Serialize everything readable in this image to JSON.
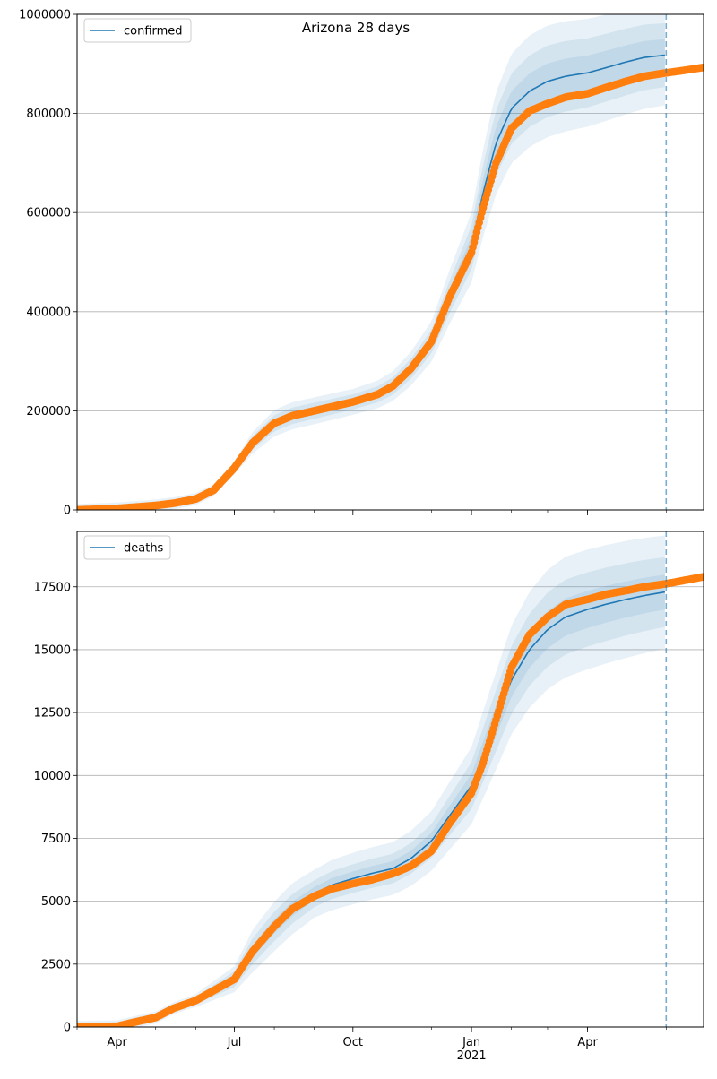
{
  "figure": {
    "title": "Arizona 28 days"
  },
  "chart_data": [
    {
      "type": "line",
      "panel": "top",
      "title": "Arizona 28 days",
      "legend": {
        "label": "confirmed",
        "placement": "top-left"
      },
      "grid": "y",
      "ylim": [
        0,
        1000000
      ],
      "yticks": [
        0,
        200000,
        400000,
        600000,
        800000,
        1000000
      ],
      "ytick_labels": [
        "0",
        "200000",
        "400000",
        "600000",
        "800000",
        "1000000"
      ],
      "xlim": [
        "2020-03-01",
        "2021-06-30"
      ],
      "forecast_start": "2021-06-01",
      "colors": {
        "model": "#1f77b4",
        "observed": "#ff7f0e",
        "band": "#1f77b4",
        "forecast_line": "#1f77b4"
      },
      "observed": [
        [
          "2020-03-01",
          0
        ],
        [
          "2020-04-01",
          3000
        ],
        [
          "2020-05-01",
          9000
        ],
        [
          "2020-05-15",
          13500
        ],
        [
          "2020-06-01",
          22000
        ],
        [
          "2020-06-15",
          40000
        ],
        [
          "2020-07-01",
          85000
        ],
        [
          "2020-07-15",
          135000
        ],
        [
          "2020-08-01",
          175000
        ],
        [
          "2020-08-15",
          190000
        ],
        [
          "2020-09-01",
          200000
        ],
        [
          "2020-10-01",
          218000
        ],
        [
          "2020-10-20",
          233000
        ],
        [
          "2020-11-01",
          250000
        ],
        [
          "2020-11-15",
          285000
        ],
        [
          "2020-12-01",
          340000
        ],
        [
          "2020-12-15",
          430000
        ],
        [
          "2021-01-01",
          520000
        ],
        [
          "2021-01-10",
          610000
        ],
        [
          "2021-01-20",
          700000
        ],
        [
          "2021-02-01",
          770000
        ],
        [
          "2021-02-15",
          805000
        ],
        [
          "2021-03-01",
          820000
        ],
        [
          "2021-03-15",
          833000
        ],
        [
          "2021-04-01",
          840000
        ],
        [
          "2021-04-15",
          852000
        ],
        [
          "2021-05-01",
          865000
        ],
        [
          "2021-05-15",
          875000
        ],
        [
          "2021-06-01",
          882000
        ],
        [
          "2021-06-15",
          887000
        ],
        [
          "2021-06-30",
          893000
        ]
      ],
      "model": [
        [
          "2020-03-01",
          0
        ],
        [
          "2020-04-01",
          3000
        ],
        [
          "2020-05-01",
          9000
        ],
        [
          "2020-05-15",
          13500
        ],
        [
          "2020-06-01",
          22000
        ],
        [
          "2020-06-15",
          40000
        ],
        [
          "2020-07-01",
          85000
        ],
        [
          "2020-07-15",
          135000
        ],
        [
          "2020-08-01",
          175000
        ],
        [
          "2020-08-15",
          190000
        ],
        [
          "2020-09-01",
          200000
        ],
        [
          "2020-10-01",
          218000
        ],
        [
          "2020-10-20",
          233000
        ],
        [
          "2020-11-01",
          250000
        ],
        [
          "2020-11-15",
          285000
        ],
        [
          "2020-12-01",
          340000
        ],
        [
          "2020-12-15",
          430000
        ],
        [
          "2021-01-01",
          530000
        ],
        [
          "2021-01-10",
          640000
        ],
        [
          "2021-01-20",
          740000
        ],
        [
          "2021-02-01",
          810000
        ],
        [
          "2021-02-15",
          845000
        ],
        [
          "2021-03-01",
          865000
        ],
        [
          "2021-03-15",
          875000
        ],
        [
          "2021-04-01",
          882000
        ],
        [
          "2021-04-15",
          892000
        ],
        [
          "2021-05-01",
          904000
        ],
        [
          "2021-05-15",
          913000
        ],
        [
          "2021-06-01",
          918000
        ]
      ],
      "bands_rel": [
        [
          [
            "2020-03-01",
            0.06
          ],
          [
            "2020-06-01",
            0.15
          ],
          [
            "2020-07-15",
            0.16
          ],
          [
            "2020-10-01",
            0.12
          ],
          [
            "2020-12-01",
            0.12
          ],
          [
            "2021-01-15",
            0.14
          ],
          [
            "2021-06-01",
            0.11
          ]
        ],
        [
          [
            "2020-03-01",
            0.03
          ],
          [
            "2020-06-01",
            0.09
          ],
          [
            "2020-07-15",
            0.1
          ],
          [
            "2020-10-01",
            0.07
          ],
          [
            "2020-12-01",
            0.07
          ],
          [
            "2021-01-15",
            0.09
          ],
          [
            "2021-06-01",
            0.07
          ]
        ],
        [
          [
            "2020-03-01",
            0.015
          ],
          [
            "2020-06-01",
            0.045
          ],
          [
            "2020-07-15",
            0.05
          ],
          [
            "2020-10-01",
            0.035
          ],
          [
            "2020-12-01",
            0.035
          ],
          [
            "2021-01-15",
            0.045
          ],
          [
            "2021-06-01",
            0.035
          ]
        ]
      ]
    },
    {
      "type": "line",
      "panel": "bottom",
      "legend": {
        "label": "deaths",
        "placement": "top-left"
      },
      "grid": "y",
      "ylim": [
        0,
        19700
      ],
      "yticks": [
        0,
        2500,
        5000,
        7500,
        10000,
        12500,
        15000,
        17500
      ],
      "ytick_labels": [
        "0",
        "2500",
        "5000",
        "7500",
        "10000",
        "12500",
        "15000",
        "17500"
      ],
      "xlim": [
        "2020-03-01",
        "2021-06-30"
      ],
      "xticks": [
        {
          "date": "2020-04-01",
          "label": "Apr"
        },
        {
          "date": "2020-07-01",
          "label": "Jul"
        },
        {
          "date": "2020-10-01",
          "label": "Oct"
        },
        {
          "date": "2021-01-01",
          "label": "Jan",
          "sublabel": "2021"
        },
        {
          "date": "2021-04-01",
          "label": "Apr"
        }
      ],
      "forecast_start": "2021-06-01",
      "colors": {
        "model": "#1f77b4",
        "observed": "#ff7f0e",
        "band": "#1f77b4",
        "forecast_line": "#1f77b4"
      },
      "observed": [
        [
          "2020-03-01",
          0
        ],
        [
          "2020-04-01",
          30
        ],
        [
          "2020-04-15",
          200
        ],
        [
          "2020-05-01",
          380
        ],
        [
          "2020-05-15",
          750
        ],
        [
          "2020-06-01",
          1050
        ],
        [
          "2020-06-15",
          1450
        ],
        [
          "2020-07-01",
          1900
        ],
        [
          "2020-07-15",
          3000
        ],
        [
          "2020-08-01",
          4000
        ],
        [
          "2020-08-15",
          4700
        ],
        [
          "2020-09-01",
          5200
        ],
        [
          "2020-09-15",
          5500
        ],
        [
          "2020-10-01",
          5700
        ],
        [
          "2020-10-15",
          5850
        ],
        [
          "2020-11-01",
          6100
        ],
        [
          "2020-11-15",
          6400
        ],
        [
          "2020-12-01",
          7000
        ],
        [
          "2020-12-15",
          8100
        ],
        [
          "2021-01-01",
          9300
        ],
        [
          "2021-01-10",
          10500
        ],
        [
          "2021-01-20",
          12200
        ],
        [
          "2021-02-01",
          14300
        ],
        [
          "2021-02-15",
          15600
        ],
        [
          "2021-03-01",
          16300
        ],
        [
          "2021-03-15",
          16800
        ],
        [
          "2021-04-01",
          17000
        ],
        [
          "2021-04-15",
          17200
        ],
        [
          "2021-05-01",
          17350
        ],
        [
          "2021-05-15",
          17500
        ],
        [
          "2021-06-01",
          17620
        ],
        [
          "2021-06-30",
          17900
        ]
      ],
      "model": [
        [
          "2020-03-01",
          0
        ],
        [
          "2020-04-01",
          30
        ],
        [
          "2020-04-15",
          200
        ],
        [
          "2020-05-01",
          380
        ],
        [
          "2020-05-15",
          750
        ],
        [
          "2020-06-01",
          1050
        ],
        [
          "2020-06-15",
          1450
        ],
        [
          "2020-07-01",
          1900
        ],
        [
          "2020-07-15",
          3000
        ],
        [
          "2020-08-01",
          4000
        ],
        [
          "2020-08-15",
          4700
        ],
        [
          "2020-09-01",
          5300
        ],
        [
          "2020-09-15",
          5650
        ],
        [
          "2020-10-01",
          5900
        ],
        [
          "2020-10-15",
          6100
        ],
        [
          "2020-11-01",
          6300
        ],
        [
          "2020-11-15",
          6700
        ],
        [
          "2020-12-01",
          7400
        ],
        [
          "2020-12-15",
          8400
        ],
        [
          "2021-01-01",
          9600
        ],
        [
          "2021-01-15",
          11500
        ],
        [
          "2021-02-01",
          13800
        ],
        [
          "2021-02-15",
          15000
        ],
        [
          "2021-03-01",
          15800
        ],
        [
          "2021-03-15",
          16300
        ],
        [
          "2021-04-01",
          16600
        ],
        [
          "2021-04-15",
          16800
        ],
        [
          "2021-05-01",
          17000
        ],
        [
          "2021-05-15",
          17150
        ],
        [
          "2021-06-01",
          17300
        ]
      ],
      "bands_rel": [
        [
          [
            "2020-03-01",
            0.1
          ],
          [
            "2020-06-01",
            0.25
          ],
          [
            "2020-07-15",
            0.28
          ],
          [
            "2020-09-01",
            0.18
          ],
          [
            "2020-12-01",
            0.16
          ],
          [
            "2021-01-15",
            0.16
          ],
          [
            "2021-06-01",
            0.13
          ]
        ],
        [
          [
            "2020-03-01",
            0.06
          ],
          [
            "2020-06-01",
            0.15
          ],
          [
            "2020-07-15",
            0.17
          ],
          [
            "2020-09-01",
            0.1
          ],
          [
            "2020-12-01",
            0.09
          ],
          [
            "2021-01-15",
            0.1
          ],
          [
            "2021-06-01",
            0.08
          ]
        ],
        [
          [
            "2020-03-01",
            0.03
          ],
          [
            "2020-06-01",
            0.07
          ],
          [
            "2020-07-15",
            0.08
          ],
          [
            "2020-09-01",
            0.05
          ],
          [
            "2020-12-01",
            0.045
          ],
          [
            "2021-01-15",
            0.05
          ],
          [
            "2021-06-01",
            0.04
          ]
        ]
      ]
    }
  ]
}
